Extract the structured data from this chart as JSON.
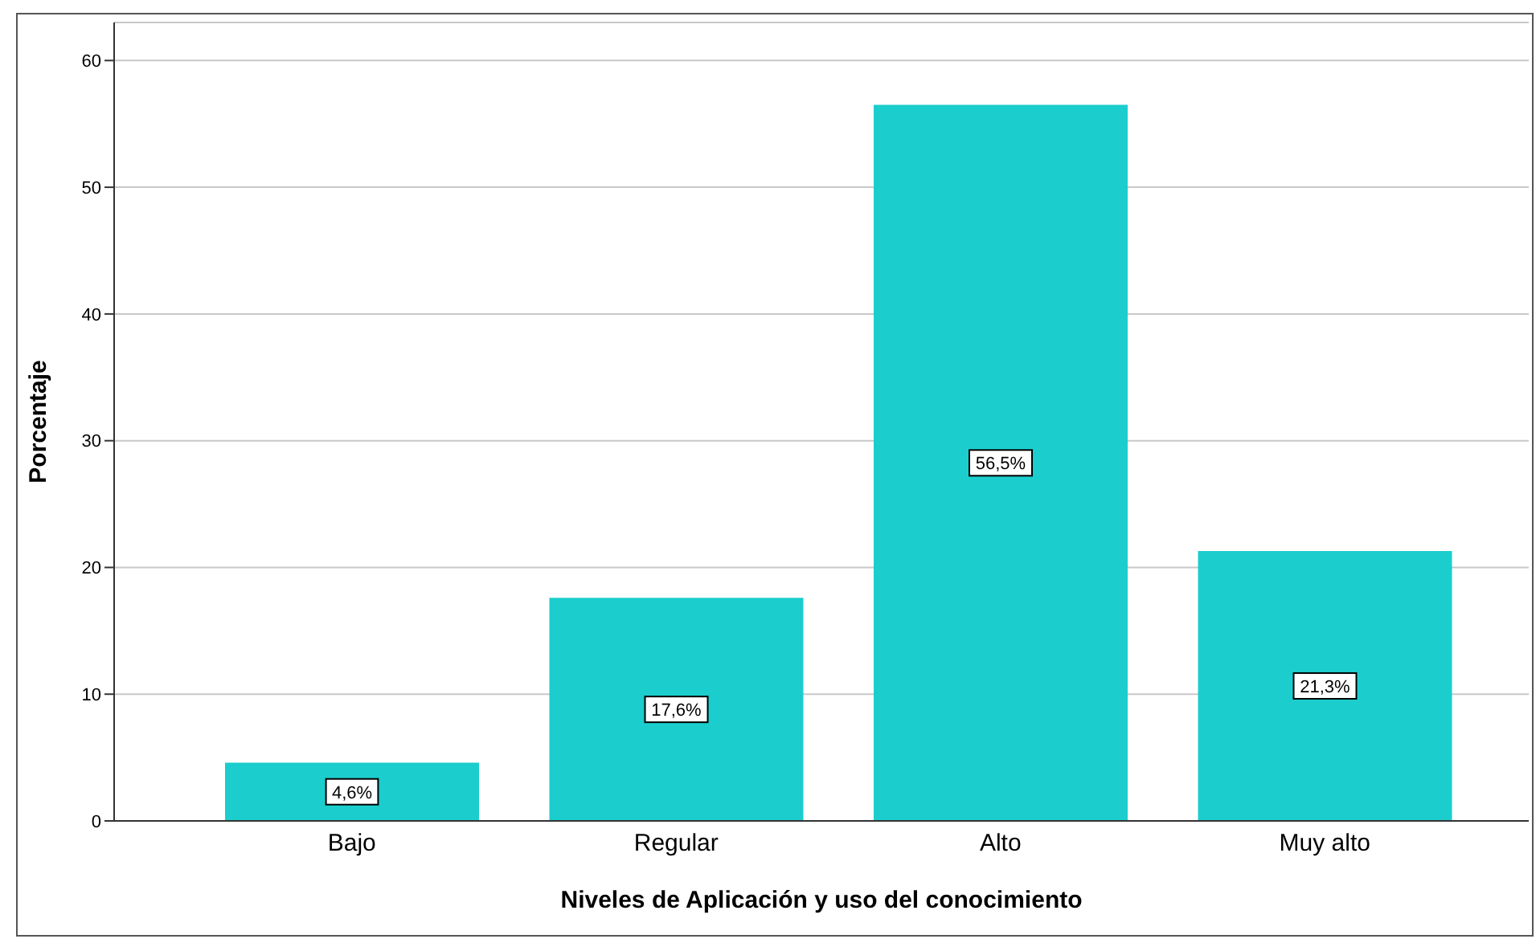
{
  "chart_data": {
    "type": "bar",
    "xlabel": "Niveles de Aplicación y uso del conocimiento",
    "ylabel": "Porcentaje",
    "categories": [
      "Bajo",
      "Regular",
      "Alto",
      "Muy alto"
    ],
    "values": [
      4.6,
      17.6,
      56.5,
      21.3
    ],
    "value_labels": [
      "4,6%",
      "17,6%",
      "56,5%",
      "21,3%"
    ],
    "color": "#1ccdcd",
    "ylim": [
      0,
      63
    ],
    "yticks": [
      0,
      10,
      20,
      30,
      40,
      50,
      60
    ],
    "grid": "y"
  }
}
